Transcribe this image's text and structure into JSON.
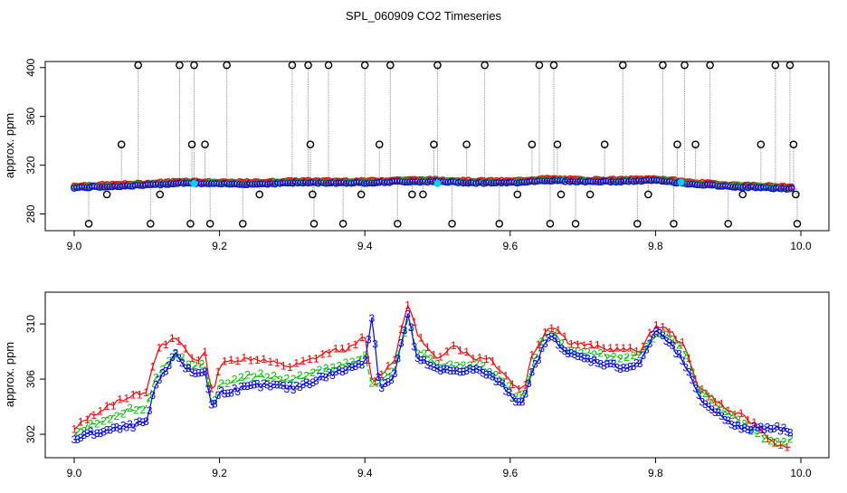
{
  "title": "SPL_060909  CO2 Timeseries",
  "colors": {
    "series1": "#ff0000",
    "series2": "#00c000",
    "series3": "#0000ff",
    "flag": "#000000",
    "highlight": "#00d0ff",
    "spike": "#a0a0a0"
  },
  "chart_data": [
    {
      "type": "scatter",
      "title": "",
      "xlabel": "",
      "ylabel": "approx. ppm",
      "xlim": [
        9.0,
        10.0
      ],
      "ylim": [
        270,
        405
      ],
      "x_ticks": [
        "9.0",
        "9.2",
        "9.4",
        "9.6",
        "9.8",
        "10.0"
      ],
      "y_ticks": [
        "280",
        "320",
        "360",
        "400"
      ],
      "baseline": {
        "x": [
          9.0,
          9.05,
          9.1,
          9.15,
          9.2,
          9.25,
          9.3,
          9.35,
          9.4,
          9.45,
          9.5,
          9.55,
          9.6,
          9.65,
          9.7,
          9.75,
          9.8,
          9.85,
          9.9,
          9.95,
          9.99
        ],
        "y": [
          302,
          303,
          304,
          306,
          305,
          305,
          306,
          306,
          306,
          307,
          307,
          306,
          306,
          308,
          307,
          307,
          308,
          305,
          303,
          302,
          301
        ]
      },
      "flagged": {
        "x": [
          9.02,
          9.045,
          9.065,
          9.088,
          9.105,
          9.118,
          9.145,
          9.16,
          9.162,
          9.165,
          9.18,
          9.187,
          9.21,
          9.232,
          9.255,
          9.3,
          9.322,
          9.325,
          9.328,
          9.33,
          9.35,
          9.37,
          9.395,
          9.4,
          9.42,
          9.435,
          9.445,
          9.465,
          9.48,
          9.495,
          9.5,
          9.52,
          9.54,
          9.565,
          9.585,
          9.61,
          9.63,
          9.64,
          9.655,
          9.66,
          9.665,
          9.67,
          9.69,
          9.71,
          9.73,
          9.755,
          9.775,
          9.79,
          9.81,
          9.825,
          9.83,
          9.84,
          9.855,
          9.875,
          9.9,
          9.92,
          9.945,
          9.965,
          9.985,
          9.99,
          9.993,
          9.995
        ],
        "y": [
          272,
          296,
          337,
          402,
          272,
          296,
          402,
          272,
          337,
          402,
          337,
          272,
          402,
          272,
          296,
          402,
          402,
          337,
          296,
          272,
          402,
          272,
          296,
          402,
          337,
          402,
          272,
          296,
          296,
          337,
          402,
          272,
          337,
          402,
          272,
          296,
          337,
          402,
          272,
          402,
          337,
          296,
          272,
          296,
          337,
          402,
          272,
          296,
          402,
          272,
          337,
          402,
          337,
          402,
          272,
          296,
          337,
          402,
          402,
          337,
          296,
          272
        ]
      },
      "highlighted": {
        "x": [
          9.165,
          9.5,
          9.835
        ],
        "y": [
          305,
          305,
          306
        ]
      }
    },
    {
      "type": "line",
      "title": "",
      "xlabel": "",
      "ylabel": "approx. ppm",
      "xlim": [
        9.0,
        10.0
      ],
      "ylim": [
        300.3,
        312.3
      ],
      "x_ticks": [
        "9.0",
        "9.2",
        "9.4",
        "9.6",
        "9.8",
        "10.0"
      ],
      "y_ticks": [
        "302",
        "306",
        "310"
      ],
      "series": [
        {
          "name": "1",
          "marker": "1",
          "x": [
            9.0,
            9.02,
            9.04,
            9.06,
            9.08,
            9.1,
            9.11,
            9.12,
            9.13,
            9.14,
            9.15,
            9.16,
            9.17,
            9.18,
            9.19,
            9.2,
            9.22,
            9.25,
            9.28,
            9.3,
            9.33,
            9.35,
            9.38,
            9.4,
            9.41,
            9.42,
            9.44,
            9.46,
            9.47,
            9.48,
            9.5,
            9.52,
            9.55,
            9.57,
            9.59,
            9.61,
            9.62,
            9.63,
            9.65,
            9.66,
            9.68,
            9.7,
            9.73,
            9.76,
            9.78,
            9.8,
            9.82,
            9.84,
            9.86,
            9.88,
            9.9,
            9.92,
            9.94,
            9.96,
            9.98,
            9.99
          ],
          "values": [
            302.3,
            303.3,
            303.8,
            304.4,
            304.8,
            305.2,
            307.5,
            308.4,
            308.6,
            309.0,
            308.4,
            307.6,
            307.4,
            307.8,
            304.9,
            307.0,
            307.4,
            307.5,
            307.1,
            306.9,
            307.5,
            308.0,
            308.2,
            309.1,
            305.8,
            306.3,
            307.3,
            311.6,
            309.6,
            308.6,
            307.3,
            308.6,
            307.5,
            307.6,
            306.5,
            305.3,
            305.5,
            307.7,
            309.6,
            309.9,
            308.7,
            308.5,
            308.2,
            308.1,
            308.1,
            309.9,
            309.5,
            308.3,
            305.4,
            304.6,
            303.7,
            303.3,
            302.6,
            301.5,
            300.9,
            301.3
          ]
        },
        {
          "name": "2",
          "marker": "2",
          "x": [
            9.0,
            9.02,
            9.04,
            9.06,
            9.08,
            9.1,
            9.11,
            9.12,
            9.13,
            9.14,
            9.15,
            9.16,
            9.17,
            9.18,
            9.19,
            9.2,
            9.22,
            9.25,
            9.28,
            9.3,
            9.33,
            9.35,
            9.38,
            9.4,
            9.41,
            9.42,
            9.44,
            9.46,
            9.47,
            9.48,
            9.5,
            9.52,
            9.55,
            9.57,
            9.59,
            9.61,
            9.62,
            9.63,
            9.65,
            9.66,
            9.68,
            9.7,
            9.73,
            9.76,
            9.78,
            9.8,
            9.82,
            9.84,
            9.86,
            9.88,
            9.9,
            9.92,
            9.94,
            9.96,
            9.98,
            9.99
          ],
          "values": [
            302.0,
            302.6,
            303.0,
            303.4,
            303.8,
            304.0,
            306.0,
            306.8,
            307.2,
            307.8,
            307.5,
            306.9,
            306.9,
            306.9,
            304.1,
            305.6,
            305.9,
            306.3,
            306.1,
            305.9,
            306.5,
            306.8,
            307.1,
            307.8,
            305.5,
            305.8,
            306.5,
            310.6,
            308.1,
            307.8,
            306.9,
            307.1,
            307.0,
            306.7,
            305.9,
            304.6,
            305.1,
            306.9,
            309.4,
            309.3,
            308.1,
            307.9,
            307.7,
            307.6,
            307.9,
            309.3,
            309.0,
            307.9,
            305.3,
            304.3,
            303.4,
            302.8,
            302.0,
            301.6,
            301.5,
            301.5
          ]
        },
        {
          "name": "3",
          "marker": "3",
          "x": [
            9.0,
            9.02,
            9.04,
            9.06,
            9.08,
            9.1,
            9.11,
            9.12,
            9.13,
            9.14,
            9.15,
            9.16,
            9.17,
            9.18,
            9.19,
            9.2,
            9.22,
            9.25,
            9.28,
            9.3,
            9.33,
            9.35,
            9.38,
            9.4,
            9.41,
            9.42,
            9.44,
            9.46,
            9.47,
            9.48,
            9.5,
            9.52,
            9.55,
            9.57,
            9.59,
            9.61,
            9.62,
            9.63,
            9.65,
            9.66,
            9.68,
            9.7,
            9.73,
            9.76,
            9.78,
            9.8,
            9.82,
            9.84,
            9.86,
            9.88,
            9.9,
            9.92,
            9.94,
            9.96,
            9.98,
            9.99
          ],
          "values": [
            301.6,
            302.0,
            302.2,
            302.4,
            302.6,
            302.9,
            305.1,
            306.3,
            306.8,
            308.0,
            307.0,
            306.5,
            306.4,
            306.6,
            303.8,
            305.0,
            305.2,
            305.5,
            305.5,
            305.3,
            305.9,
            306.3,
            306.8,
            307.3,
            310.6,
            305.4,
            306.1,
            310.9,
            307.5,
            307.3,
            306.6,
            306.6,
            306.7,
            306.3,
            305.5,
            304.3,
            304.6,
            306.4,
            308.9,
            309.0,
            307.8,
            307.5,
            307.1,
            306.8,
            307.2,
            309.6,
            308.5,
            307.1,
            304.6,
            303.7,
            303.0,
            302.3,
            302.5,
            302.5,
            302.3,
            302.2
          ]
        }
      ]
    }
  ]
}
